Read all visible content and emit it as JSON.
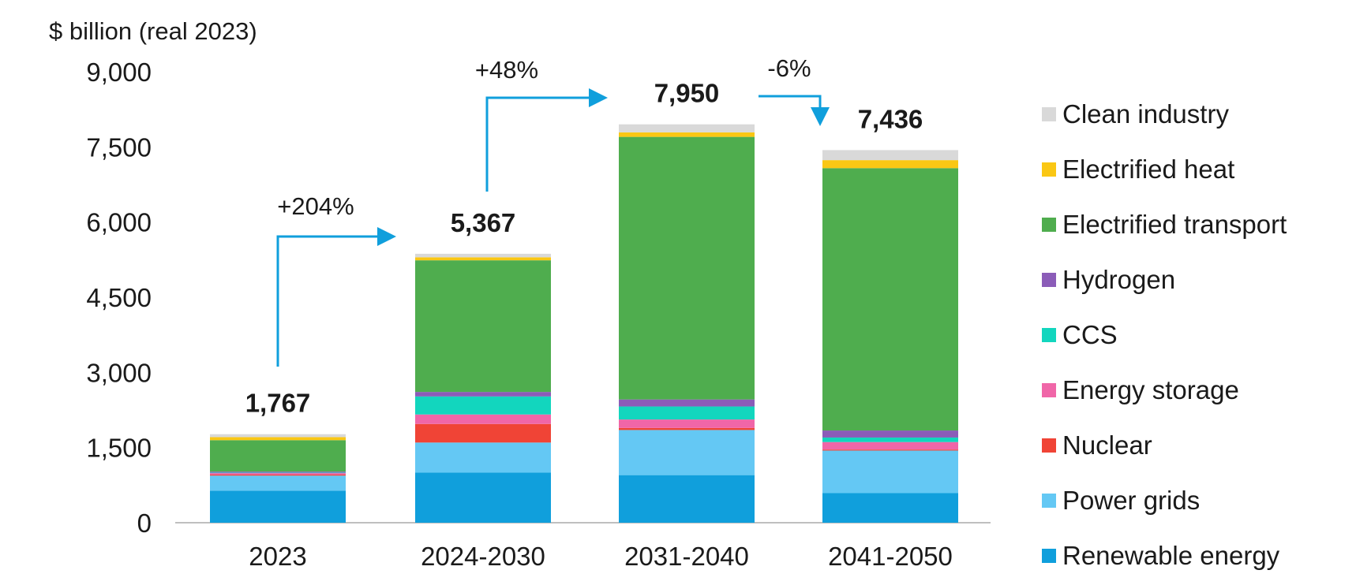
{
  "chart_data": {
    "type": "bar",
    "stacked": true,
    "ylabel": "$ billion  (real 2023)",
    "ylim": [
      0,
      9000
    ],
    "yticks": [
      0,
      1500,
      3000,
      4500,
      6000,
      7500,
      9000
    ],
    "ytick_labels": [
      "0",
      "1,500",
      "3,000",
      "4,500",
      "6,000",
      "7,500",
      "9,000"
    ],
    "categories": [
      "2023",
      "2024-2030",
      "2031-2040",
      "2041-2050"
    ],
    "totals": [
      1767,
      5367,
      7950,
      7436
    ],
    "total_labels": [
      "1,767",
      "5,367",
      "7,950",
      "7,436"
    ],
    "series": [
      {
        "name": "Renewable energy",
        "color": "#109FDC",
        "values": [
          640,
          1000,
          950,
          590
        ]
      },
      {
        "name": "Power grids",
        "color": "#64C8F4",
        "values": [
          300,
          600,
          900,
          850
        ]
      },
      {
        "name": "Nuclear",
        "color": "#F04436",
        "values": [
          20,
          370,
          40,
          20
        ]
      },
      {
        "name": "Energy storage",
        "color": "#F066A8",
        "values": [
          30,
          190,
          170,
          150
        ]
      },
      {
        "name": "CCS",
        "color": "#12D6BE",
        "values": [
          10,
          360,
          260,
          90
        ]
      },
      {
        "name": "Hydrogen",
        "color": "#8B5CB8",
        "values": [
          20,
          90,
          140,
          140
        ]
      },
      {
        "name": "Electrified transport",
        "color": "#4FAD4E",
        "values": [
          627,
          2627,
          5240,
          5236
        ]
      },
      {
        "name": "Electrified heat",
        "color": "#FAC714",
        "values": [
          60,
          60,
          90,
          160
        ]
      },
      {
        "name": "Clean industry",
        "color": "#D9D9D9",
        "values": [
          60,
          70,
          160,
          200
        ]
      }
    ],
    "annotations": [
      {
        "text": "+204%",
        "from": "2023",
        "to": "2024-2030"
      },
      {
        "text": "+48%",
        "from": "2024-2030",
        "to": "2031-2040"
      },
      {
        "text": "-6%",
        "from": "2031-2040",
        "to": "2041-2050"
      }
    ],
    "arrow_color": "#109FDC",
    "legend_position": "right"
  }
}
